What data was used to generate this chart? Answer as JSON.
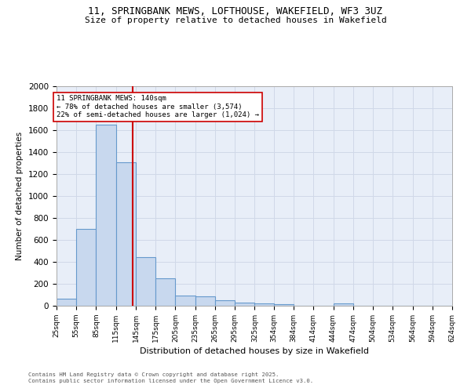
{
  "title_line1": "11, SPRINGBANK MEWS, LOFTHOUSE, WAKEFIELD, WF3 3UZ",
  "title_line2": "Size of property relative to detached houses in Wakefield",
  "xlabel": "Distribution of detached houses by size in Wakefield",
  "ylabel": "Number of detached properties",
  "annotation_line1": "11 SPRINGBANK MEWS: 140sqm",
  "annotation_line2": "← 78% of detached houses are smaller (3,574)",
  "annotation_line3": "22% of semi-detached houses are larger (1,024) →",
  "property_size": 140,
  "bin_edges": [
    25,
    55,
    85,
    115,
    145,
    175,
    205,
    235,
    265,
    295,
    325,
    354,
    384,
    414,
    444,
    474,
    504,
    534,
    564,
    594,
    624
  ],
  "counts": [
    65,
    700,
    1650,
    1310,
    440,
    250,
    90,
    85,
    50,
    30,
    25,
    15,
    0,
    0,
    20,
    0,
    0,
    0,
    0,
    0
  ],
  "bar_color": "#c8d8ee",
  "bar_edge_color": "#6699cc",
  "vline_color": "#cc0000",
  "vline_x": 140,
  "annotation_box_color": "#cc0000",
  "annotation_fill": "#ffffff",
  "grid_color": "#d0d8e8",
  "plot_bg_color": "#e8eef8",
  "background_color": "#ffffff",
  "footnote_line1": "Contains HM Land Registry data © Crown copyright and database right 2025.",
  "footnote_line2": "Contains public sector information licensed under the Open Government Licence v3.0.",
  "ylim": [
    0,
    2000
  ],
  "yticks": [
    0,
    200,
    400,
    600,
    800,
    1000,
    1200,
    1400,
    1600,
    1800,
    2000
  ]
}
